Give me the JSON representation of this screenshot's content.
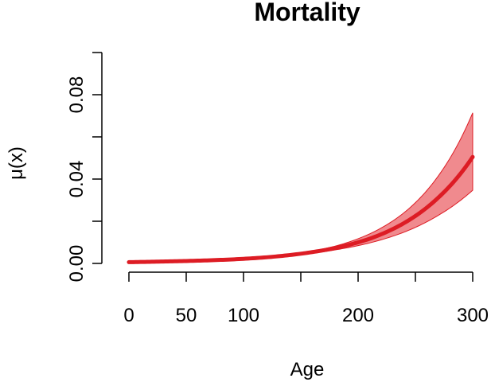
{
  "chart_data": {
    "type": "line",
    "title": "Mortality",
    "xlabel": "Age",
    "ylabel": "μ(x)",
    "xlim": [
      0,
      300
    ],
    "ylim": [
      0,
      0.1
    ],
    "grid": false,
    "legend": "none",
    "x_ticks": [
      0,
      50,
      100,
      150,
      200,
      250,
      300
    ],
    "x_tick_labels": [
      "0",
      "50",
      "100",
      "",
      "200",
      "",
      "300"
    ],
    "y_ticks": [
      0,
      0.02,
      0.04,
      0.06,
      0.08,
      0.1
    ],
    "y_tick_labels": [
      "0.00",
      "",
      "0.04",
      "",
      "0.08",
      ""
    ],
    "colors": {
      "line": "#dd1c24",
      "band_fill": "#f08a8e",
      "band_edge": "#dd1c24"
    },
    "series": [
      {
        "x": [
          0,
          30,
          60,
          90,
          120,
          150,
          180,
          210,
          240,
          270,
          300
        ],
        "values": [
          0.0006,
          0.0009,
          0.0013,
          0.0019,
          0.0029,
          0.0046,
          0.0073,
          0.0117,
          0.0191,
          0.0312,
          0.0505
        ],
        "lower": [
          0.0006,
          0.0009,
          0.0013,
          0.0019,
          0.0028,
          0.0042,
          0.0064,
          0.0097,
          0.0148,
          0.0228,
          0.0347
        ],
        "upper": [
          0.0006,
          0.0009,
          0.0013,
          0.0019,
          0.003,
          0.005,
          0.0082,
          0.014,
          0.024,
          0.0415,
          0.0714
        ]
      }
    ]
  }
}
